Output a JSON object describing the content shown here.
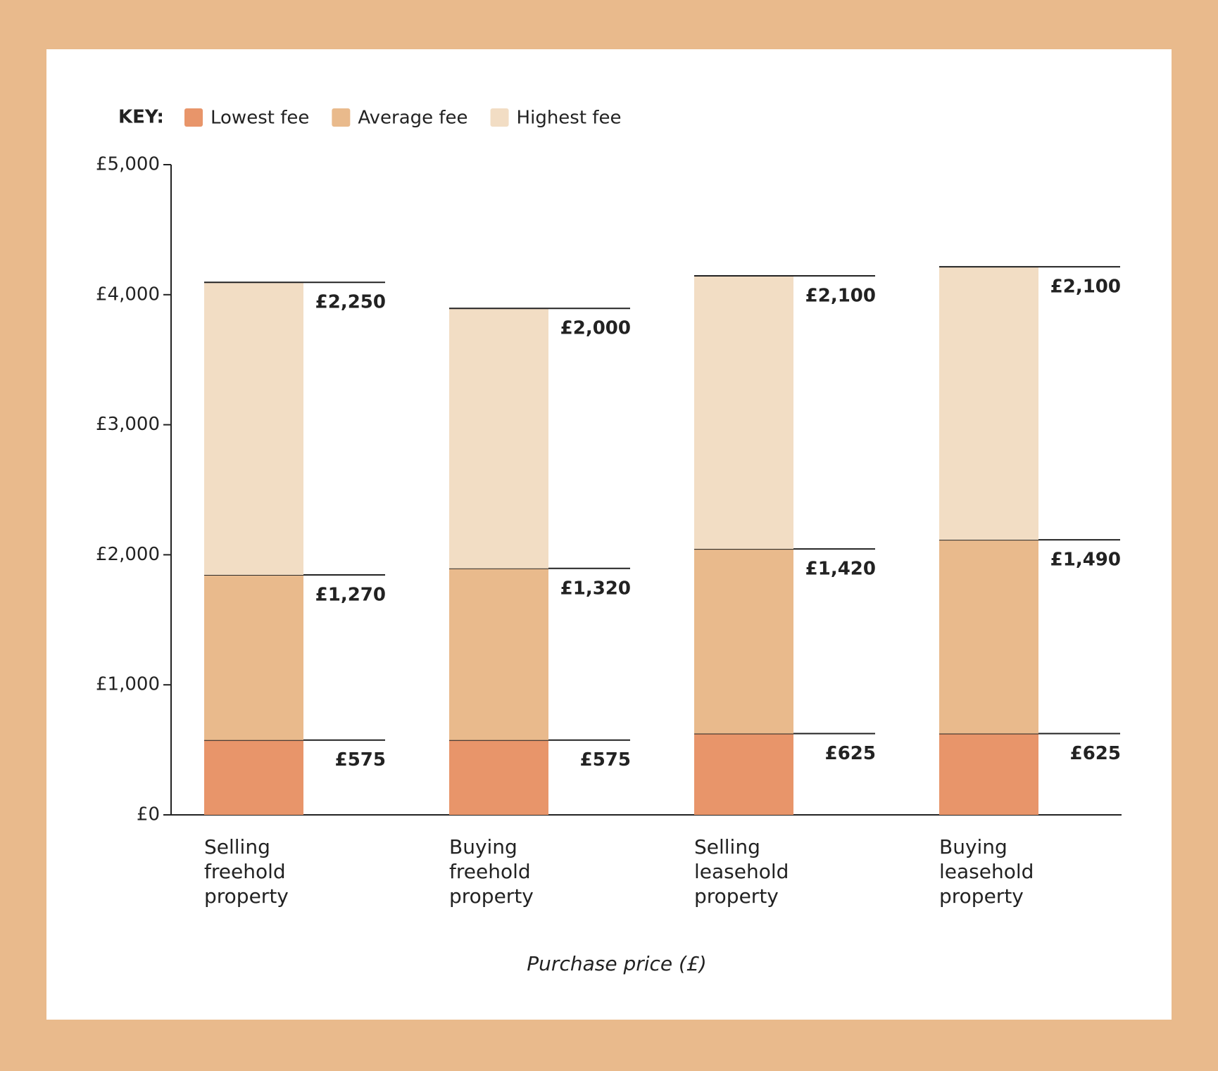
{
  "chart_data": {
    "type": "stacked_bar",
    "legend_title": "KEY:",
    "x_label": "Purchase price (£)",
    "categories": [
      "Selling freehold property",
      "Buying freehold property",
      "Selling leasehold property",
      "Buying leasehold property"
    ],
    "series": [
      {
        "name": "Lowest fee",
        "color": "#e8956a",
        "values": [
          575,
          575,
          625,
          625
        ],
        "value_labels": [
          "£575",
          "£575",
          "£625",
          "£625"
        ]
      },
      {
        "name": "Average fee",
        "color": "#e9ba8c",
        "values": [
          1270,
          1320,
          1420,
          1490
        ],
        "value_labels": [
          "£1,270",
          "£1,320",
          "£1,420",
          "£1,490"
        ]
      },
      {
        "name": "Highest fee",
        "color": "#f2ddc4",
        "values": [
          2250,
          2000,
          2100,
          2100
        ],
        "value_labels": [
          "£2,250",
          "£2,000",
          "£2,100",
          "£2,100"
        ]
      }
    ],
    "ylim": [
      0,
      5000
    ],
    "yticks": [
      {
        "value": 0,
        "label": "£0"
      },
      {
        "value": 1000,
        "label": "£1,000"
      },
      {
        "value": 2000,
        "label": "£2,000"
      },
      {
        "value": 3000,
        "label": "£3,000"
      },
      {
        "value": 4000,
        "label": "£4,000"
      },
      {
        "value": 5000,
        "label": "£5,000"
      }
    ],
    "legend": "top-left"
  }
}
